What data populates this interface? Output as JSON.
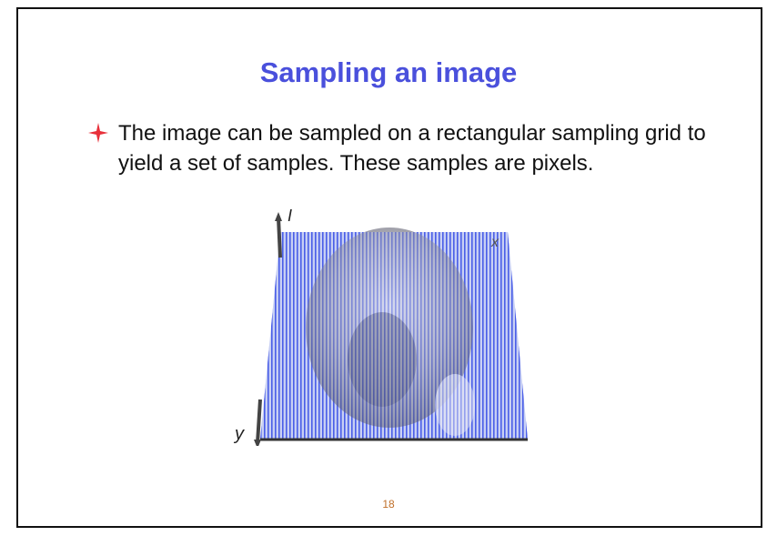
{
  "title": "Sampling an image",
  "bullets": [
    "The image can be sampled on a rectangular sampling grid to yield a set of samples. These samples are pixels."
  ],
  "figure": {
    "axis_labels": [
      "I",
      "x",
      "y"
    ]
  },
  "page_number": 18
}
